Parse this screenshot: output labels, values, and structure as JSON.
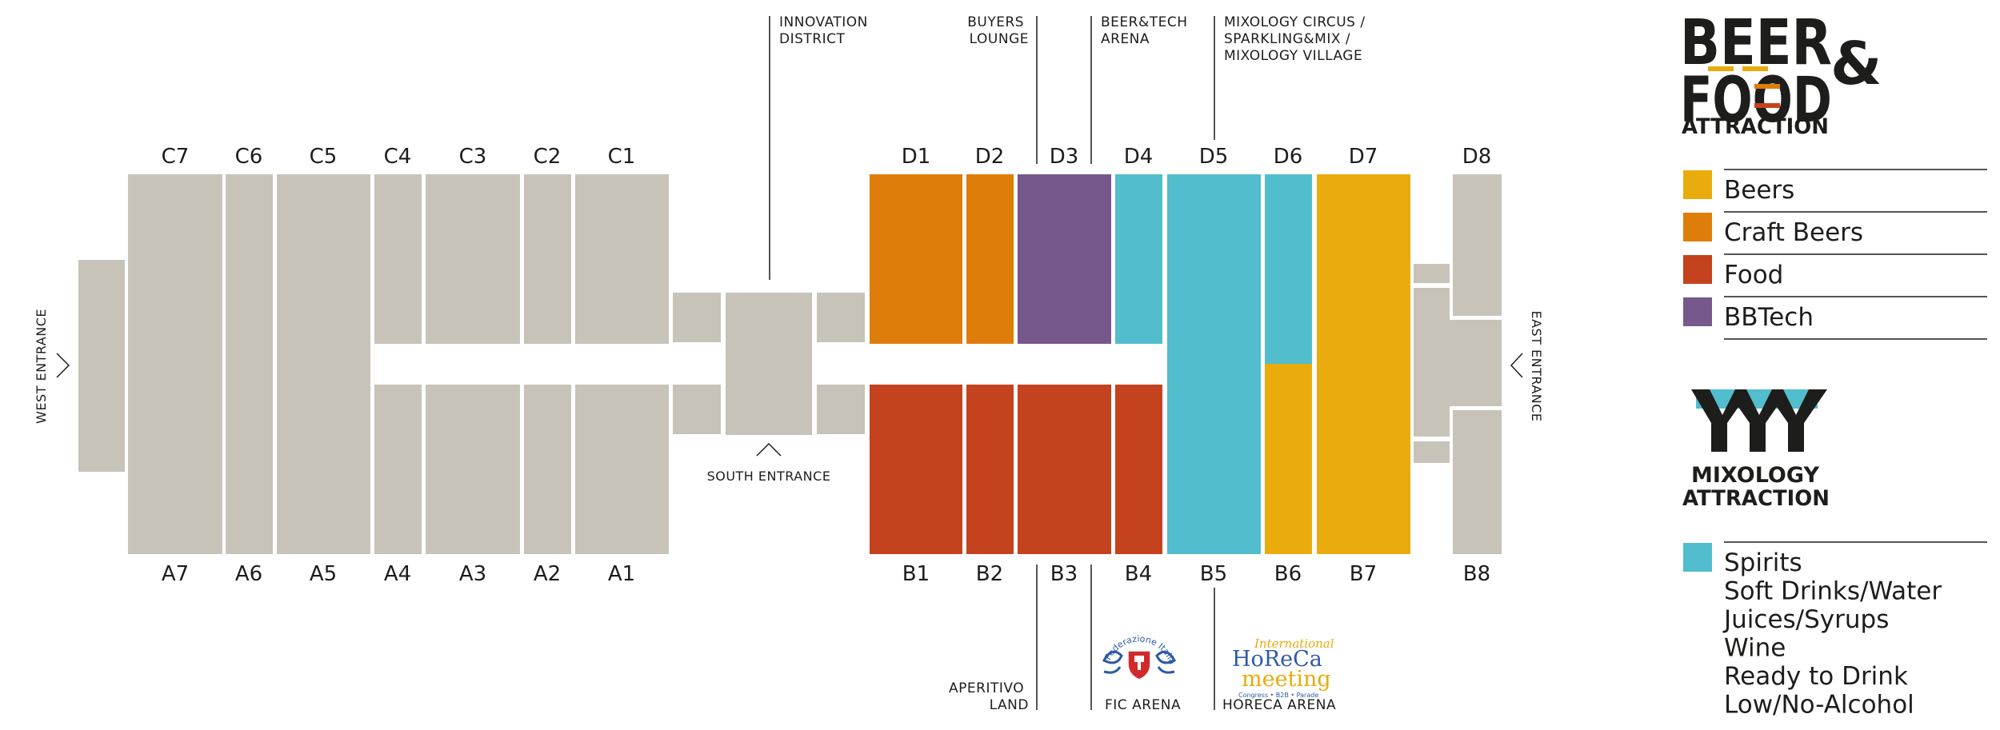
{
  "colors": {
    "hall": "#c7c3b9",
    "beers": "#e9ac0c",
    "craft_beers": "#df7d0b",
    "food": "#c4421d",
    "bbtech": "#76588d",
    "spirits": "#52bdcc",
    "text": "#1d1d1b"
  },
  "halls_top": [
    "C7",
    "C6",
    "C5",
    "C4",
    "C3",
    "C2",
    "C1",
    "D1",
    "D2",
    "D3",
    "D4",
    "D5",
    "D6",
    "D7",
    "D8"
  ],
  "halls_bottom": [
    "A7",
    "A6",
    "A5",
    "A4",
    "A3",
    "A2",
    "A1",
    "B1",
    "B2",
    "B3",
    "B4",
    "B5",
    "B6",
    "B7",
    "B8"
  ],
  "annotations": {
    "innovation": [
      "INNOVATION",
      "DISTRICT"
    ],
    "buyers": [
      "BUYERS",
      "LOUNGE"
    ],
    "beertech": [
      "BEER&TECH",
      "ARENA"
    ],
    "mixology_circus": [
      "MIXOLOGY CIRCUS /",
      "SPARKLING&MIX /",
      "MIXOLOGY VILLAGE"
    ],
    "aperitivo": [
      "APERITIVO",
      "LAND"
    ],
    "fic": "FIC ARENA",
    "horeca": "HORECA ARENA"
  },
  "entrances": {
    "west": "WEST ENTRANCE",
    "east": "EAST ENTRANCE",
    "south": "SOUTH ENTRANCE"
  },
  "logo_bfa": {
    "line1": "BEER",
    "line2": "FOOD",
    "amp": "&",
    "line3": "ATTRACTION"
  },
  "logo_mix": {
    "mark": "YYY",
    "line1": "MIXOLOGY",
    "line2": "ATTRACTION"
  },
  "legend_bfa": [
    {
      "label": "Beers",
      "color": "#e9ac0c"
    },
    {
      "label": "Craft Beers",
      "color": "#df7d0b"
    },
    {
      "label": "Food",
      "color": "#c4421d"
    },
    {
      "label": "BBTech",
      "color": "#76588d"
    }
  ],
  "legend_mix": {
    "color": "#52bdcc",
    "items": [
      "Spirits",
      "Soft Drinks/Water",
      "Juices/Syrups",
      "Wine",
      "Ready to Drink",
      "Low/No-Alcohol"
    ]
  },
  "arena_logos": {
    "fic_text": "Federazione Italiana Cuochi",
    "horeca_top": "International",
    "horeca_main1": "HoReCa",
    "horeca_main2": "meeting",
    "horeca_sub": "Congress • B2B • Parade"
  }
}
